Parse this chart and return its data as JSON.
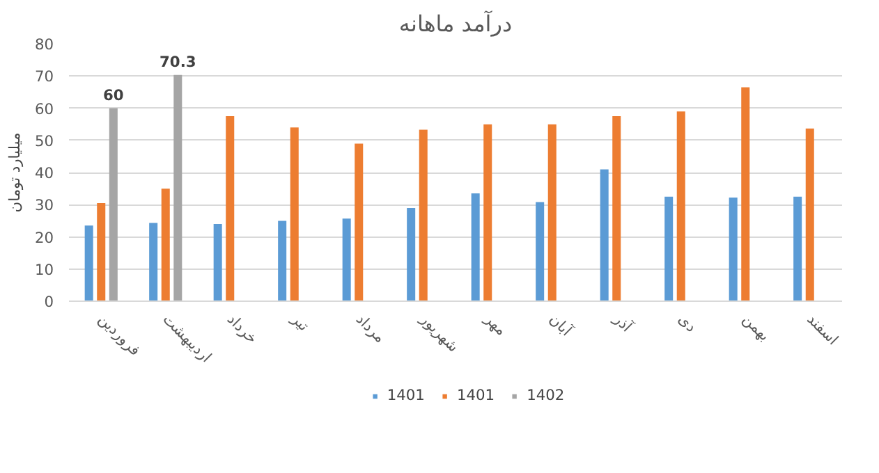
{
  "chart_data": {
    "type": "bar",
    "title": "درآمد ماهانه",
    "ylabel": "میلیارد تومان",
    "categories": [
      "فروردین",
      "اردیبهشت",
      "خرداد",
      "تیر",
      "مرداد",
      "شهریور",
      "مهر",
      "آبان",
      "آذر",
      "دی",
      "بهمن",
      "اسفند"
    ],
    "series": [
      {
        "name": "1401",
        "color": "#5b9bd5",
        "values": [
          23.5,
          24.3,
          24,
          25,
          25.7,
          29,
          33.5,
          30.8,
          41,
          32.5,
          32.2,
          32.5
        ]
      },
      {
        "name": "1401",
        "color": "#ed7d31",
        "values": [
          30.5,
          35,
          57.5,
          54,
          49,
          53.3,
          55,
          55,
          57.5,
          59,
          66.5,
          53.7
        ]
      },
      {
        "name": "1402",
        "color": "#a5a5a5",
        "values": [
          60,
          70.3,
          null,
          null,
          null,
          null,
          null,
          null,
          null,
          null,
          null,
          null
        ],
        "value_labels": [
          "60",
          "70.3",
          null,
          null,
          null,
          null,
          null,
          null,
          null,
          null,
          null,
          null
        ]
      }
    ],
    "ylim": [
      0,
      80
    ],
    "yticks": [
      0,
      10,
      20,
      30,
      40,
      50,
      60,
      70,
      80
    ],
    "grid": "y",
    "legend": "bottom"
  }
}
